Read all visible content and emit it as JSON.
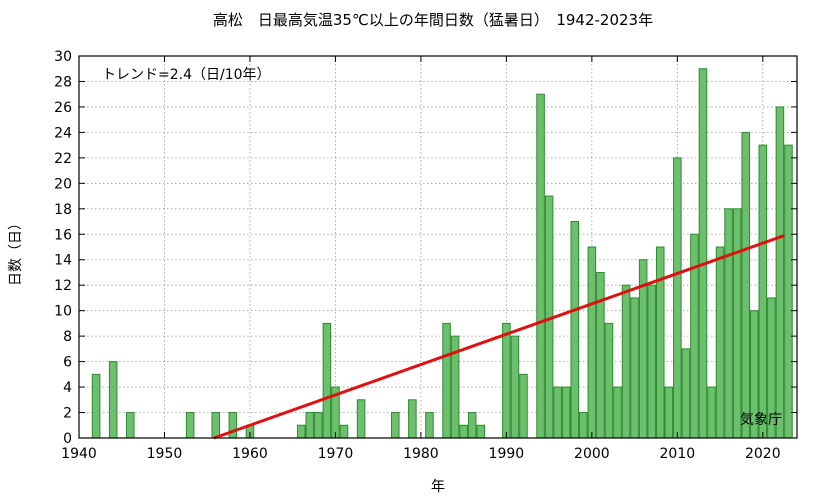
{
  "chart_data": {
    "type": "bar",
    "title": "高松　日最高気温35℃以上の年間日数（猛暑日）　1942-2023年",
    "xlabel": "年",
    "ylabel": "日数（日）",
    "annotation": "トレンド=2.4（日/10年）",
    "source": "気象庁",
    "xlim": [
      1940,
      2024
    ],
    "ylim": [
      0,
      30
    ],
    "x_ticks": [
      1940,
      1950,
      1960,
      1970,
      1980,
      1990,
      2000,
      2010,
      2020
    ],
    "y_ticks": [
      0,
      2,
      4,
      6,
      8,
      10,
      12,
      14,
      16,
      18,
      20,
      22,
      24,
      26,
      28,
      30
    ],
    "grid": true,
    "bar_color": "#6cbf6c",
    "bar_edge_color": "#2e8b2e",
    "trend_color": "#e01010",
    "x": [
      1942,
      1943,
      1944,
      1945,
      1946,
      1947,
      1948,
      1949,
      1950,
      1951,
      1952,
      1953,
      1954,
      1955,
      1956,
      1957,
      1958,
      1959,
      1960,
      1961,
      1962,
      1963,
      1964,
      1965,
      1966,
      1967,
      1968,
      1969,
      1970,
      1971,
      1972,
      1973,
      1974,
      1975,
      1976,
      1977,
      1978,
      1979,
      1980,
      1981,
      1982,
      1983,
      1984,
      1985,
      1986,
      1987,
      1988,
      1989,
      1990,
      1991,
      1992,
      1993,
      1994,
      1995,
      1996,
      1997,
      1998,
      1999,
      2000,
      2001,
      2002,
      2003,
      2004,
      2005,
      2006,
      2007,
      2008,
      2009,
      2010,
      2011,
      2012,
      2013,
      2014,
      2015,
      2016,
      2017,
      2018,
      2019,
      2020,
      2021,
      2022,
      2023
    ],
    "values": [
      5,
      0,
      6,
      0,
      2,
      0,
      0,
      0,
      0,
      0,
      0,
      2,
      0,
      0,
      2,
      0,
      2,
      0,
      1,
      0,
      0,
      0,
      0,
      0,
      1,
      2,
      2,
      9,
      4,
      1,
      0,
      3,
      0,
      0,
      0,
      2,
      0,
      3,
      0,
      2,
      0,
      9,
      8,
      1,
      2,
      1,
      0,
      0,
      9,
      8,
      5,
      0,
      27,
      19,
      4,
      4,
      17,
      2,
      15,
      13,
      9,
      4,
      12,
      11,
      14,
      12,
      15,
      4,
      22,
      7,
      16,
      29,
      4,
      15,
      18,
      18,
      24,
      10,
      23,
      11,
      26,
      23
    ],
    "trend": {
      "x": [
        1955.8,
        2022.5
      ],
      "y": [
        0,
        15.9
      ]
    }
  }
}
